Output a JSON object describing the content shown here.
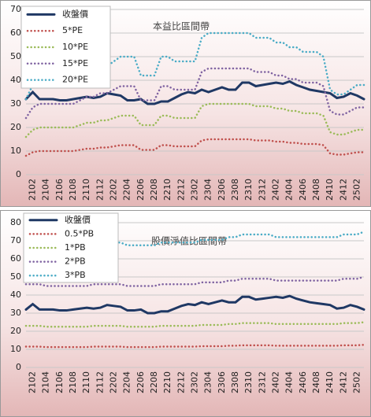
{
  "chart_data": [
    {
      "type": "line",
      "title": "本益比區間帶",
      "categories": [
        null,
        "2102",
        null,
        "2104",
        null,
        "2106",
        null,
        "2108",
        null,
        "2110",
        null,
        "2112",
        null,
        "2202",
        null,
        "2204",
        null,
        "2206",
        null,
        "2208",
        null,
        "2210",
        null,
        "2212",
        null,
        "2302",
        null,
        "2304",
        null,
        "2306",
        null,
        "2308",
        null,
        "2310",
        null,
        "2312",
        null,
        "2402",
        null,
        "2404",
        null,
        "2406",
        null,
        "2408",
        null,
        "2410",
        null,
        "2412",
        null,
        "2502",
        null
      ],
      "series": [
        {
          "name": "收盤價",
          "color": "#1f3864",
          "values": [
            32,
            35,
            32,
            32,
            32,
            31.5,
            31.5,
            32,
            32.5,
            33,
            32.5,
            33,
            34.5,
            34,
            33.5,
            31.5,
            31.5,
            32,
            30,
            30,
            31,
            31,
            32.5,
            34,
            35,
            34.5,
            36,
            35,
            36,
            37,
            36,
            36,
            39,
            39,
            37.5,
            38,
            38.5,
            39,
            38.5,
            39.5,
            38,
            37,
            36,
            35.5,
            35,
            34.5,
            32.5,
            33,
            34.5,
            33.5,
            32
          ]
        },
        {
          "name": "5*PE",
          "color": "#c0504d",
          "values": [
            8,
            9.5,
            10,
            10,
            10,
            10,
            10,
            10,
            10.5,
            11,
            11,
            11.5,
            11.5,
            12,
            12.5,
            12.5,
            12.5,
            10.5,
            10.5,
            10.5,
            12.5,
            12.5,
            12,
            12,
            12,
            12,
            14.5,
            15,
            15,
            15,
            15,
            15,
            15,
            15,
            14.5,
            14.5,
            14.5,
            14,
            14,
            13.5,
            13.5,
            13,
            13,
            13,
            12.5,
            9,
            8.5,
            8.5,
            9,
            9.5,
            9.5
          ]
        },
        {
          "name": "10*PE",
          "color": "#9bbb59",
          "values": [
            16,
            19,
            20,
            20,
            20,
            20,
            20,
            20,
            21,
            22,
            22,
            23,
            23,
            24,
            25,
            25,
            25,
            21,
            21,
            21,
            25,
            25,
            24,
            24,
            24,
            24,
            29,
            30,
            30,
            30,
            30,
            30,
            30,
            30,
            29,
            29,
            29,
            28,
            28,
            27,
            27,
            26,
            26,
            26,
            25,
            18,
            17,
            17,
            18,
            19,
            19
          ]
        },
        {
          "name": "15*PE",
          "color": "#8064a2",
          "values": [
            24,
            28.5,
            30,
            30,
            30,
            30,
            30,
            30,
            31.5,
            33,
            33,
            34.5,
            34.5,
            36,
            37.5,
            37.5,
            37.5,
            31.5,
            31.5,
            31.5,
            37.5,
            37.5,
            36,
            36,
            36,
            36,
            43.5,
            45,
            45,
            45,
            45,
            45,
            45,
            45,
            43.5,
            43.5,
            43.5,
            42,
            42,
            40.5,
            40.5,
            39,
            39,
            39,
            37.5,
            27,
            25.5,
            25.5,
            27,
            28.5,
            28.5
          ]
        },
        {
          "name": "20*PE",
          "color": "#4bacc6",
          "values": [
            32,
            38,
            40,
            40,
            40,
            40,
            40,
            40,
            42,
            44,
            44,
            46,
            46,
            48,
            50,
            50,
            50,
            42,
            42,
            42,
            50,
            50,
            48,
            48,
            48,
            48,
            58,
            60,
            60,
            60,
            60,
            60,
            60,
            60,
            58,
            58,
            58,
            56,
            56,
            54,
            54,
            52,
            52,
            52,
            50,
            36,
            34,
            34,
            36,
            38,
            38
          ]
        }
      ],
      "ylim": [
        0,
        70
      ],
      "yticks": [
        0,
        10,
        20,
        30,
        40,
        50,
        60,
        70
      ],
      "grid": true,
      "legend": "upper left"
    },
    {
      "type": "line",
      "title": "股價淨值比區間帶",
      "categories": [
        null,
        "2102",
        null,
        "2104",
        null,
        "2106",
        null,
        "2108",
        null,
        "2110",
        null,
        "2112",
        null,
        "2202",
        null,
        "2204",
        null,
        "2206",
        null,
        "2208",
        null,
        "2210",
        null,
        "2212",
        null,
        "2302",
        null,
        "2304",
        null,
        "2306",
        null,
        "2308",
        null,
        "2310",
        null,
        "2312",
        null,
        "2402",
        null,
        "2404",
        null,
        "2406",
        null,
        "2408",
        null,
        "2410",
        null,
        "2412",
        null,
        "2502",
        null
      ],
      "series": [
        {
          "name": "收盤價",
          "color": "#1f3864",
          "values": [
            32,
            35,
            32,
            32,
            32,
            31.5,
            31.5,
            32,
            32.5,
            33,
            32.5,
            33,
            34.5,
            34,
            33.5,
            31.5,
            31.5,
            32,
            30,
            30,
            31,
            31,
            32.5,
            34,
            35,
            34.5,
            36,
            35,
            36,
            37,
            36,
            36,
            39,
            39,
            37.5,
            38,
            38.5,
            39,
            38.5,
            39.5,
            38,
            37,
            36,
            35.5,
            35,
            34.5,
            32.5,
            33,
            34.5,
            33.5,
            32
          ]
        },
        {
          "name": "0.5*PB",
          "color": "#c0504d",
          "values": [
            11.5,
            11.5,
            11.5,
            11.25,
            11.25,
            11.25,
            11.25,
            11.25,
            11.25,
            11.25,
            11.5,
            11.5,
            11.5,
            11.5,
            11.5,
            11.25,
            11.25,
            11.25,
            11.25,
            11.25,
            11.5,
            11.5,
            11.5,
            11.5,
            11.5,
            11.5,
            11.75,
            11.75,
            11.75,
            11.75,
            12,
            12,
            12.25,
            12.25,
            12.25,
            12.25,
            12.25,
            12,
            12,
            12,
            12,
            12,
            12,
            12,
            12,
            12,
            12,
            12.25,
            12.25,
            12.25,
            12.5
          ]
        },
        {
          "name": "1*PB",
          "color": "#9bbb59",
          "values": [
            23,
            23,
            23,
            22.5,
            22.5,
            22.5,
            22.5,
            22.5,
            22.5,
            22.5,
            23,
            23,
            23,
            23,
            23,
            22.5,
            22.5,
            22.5,
            22.5,
            22.5,
            23,
            23,
            23,
            23,
            23,
            23,
            23.5,
            23.5,
            23.5,
            23.5,
            24,
            24,
            24.5,
            24.5,
            24.5,
            24.5,
            24.5,
            24,
            24,
            24,
            24,
            24,
            24,
            24,
            24,
            24,
            24,
            24.5,
            24.5,
            24.5,
            25
          ]
        },
        {
          "name": "2*PB",
          "color": "#8064a2",
          "values": [
            46,
            46,
            46,
            45,
            45,
            45,
            45,
            45,
            45,
            45,
            46,
            46,
            46,
            46,
            46,
            45,
            45,
            45,
            45,
            45,
            46,
            46,
            46,
            46,
            46,
            46,
            47,
            47,
            47,
            47,
            48,
            48,
            49,
            49,
            49,
            49,
            49,
            48,
            48,
            48,
            48,
            48,
            48,
            48,
            48,
            48,
            48,
            49,
            49,
            49,
            50
          ]
        },
        {
          "name": "3*PB",
          "color": "#4bacc6",
          "values": [
            69,
            69,
            69,
            67.5,
            67.5,
            67.5,
            67.5,
            67.5,
            67.5,
            67.5,
            69,
            69,
            69,
            69,
            69,
            67.5,
            67.5,
            67.5,
            67.5,
            67.5,
            69,
            69,
            69,
            69,
            69,
            69,
            70.5,
            70.5,
            70.5,
            70.5,
            72,
            72,
            73.5,
            73.5,
            73.5,
            73.5,
            73.5,
            72,
            72,
            72,
            72,
            72,
            72,
            72,
            72,
            72,
            72,
            73.5,
            73.5,
            73.5,
            75
          ]
        }
      ],
      "ylim": [
        0,
        80
      ],
      "yticks": [
        0,
        10,
        20,
        30,
        40,
        50,
        60,
        70,
        80
      ],
      "grid": true,
      "legend": "upper left"
    }
  ]
}
